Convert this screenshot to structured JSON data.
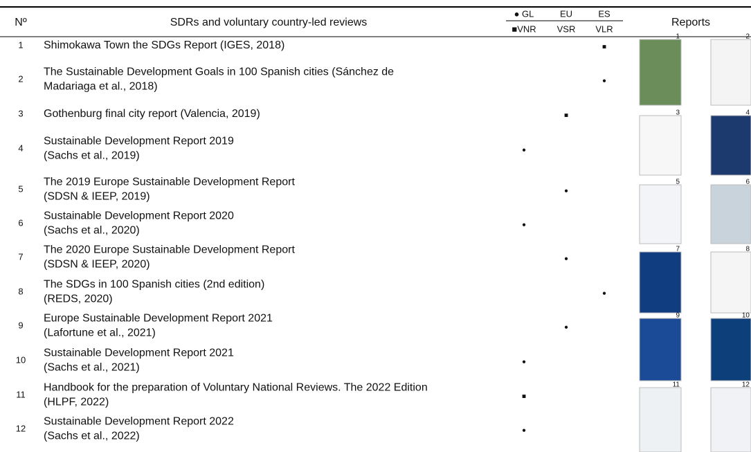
{
  "header": {
    "no": "Nº",
    "title": "SDRs and voluntary country-led reviews",
    "gl": "● GL",
    "eu": "EU",
    "es": "ES",
    "vnr": "■VNR",
    "vsr": "VSR",
    "vlr": "VLR",
    "reports": "Reports"
  },
  "rows": [
    {
      "no": "1",
      "lines": [
        "Shimokawa Town the SDGs Report (IGES, 2018)"
      ],
      "es": "■"
    },
    {
      "no": "2",
      "lines": [
        "The Sustainable Development Goals in 100 Spanish cities (Sánchez de",
        "Madariaga et al., 2018)"
      ],
      "es": "●"
    },
    {
      "no": "3",
      "lines": [
        "Gothenburg final city report (Valencia, 2019)"
      ],
      "eu": "■"
    },
    {
      "no": "4",
      "lines": [
        "Sustainable Development Report 2019",
        "(Sachs et al., 2019)"
      ],
      "gl": "●"
    },
    {
      "no": "5",
      "lines": [
        "The 2019 Europe Sustainable Development Report",
        "(SDSN & IEEP, 2019)"
      ],
      "eu": "●"
    },
    {
      "no": "6",
      "lines": [
        "Sustainable Development Report 2020",
        "(Sachs et al., 2020)"
      ],
      "gl": "●"
    },
    {
      "no": "7",
      "lines": [
        "The 2020 Europe Sustainable Development Report",
        "(SDSN & IEEP, 2020)"
      ],
      "eu": "●"
    },
    {
      "no": "8",
      "lines": [
        "The SDGs in 100 Spanish cities (2nd edition)",
        "(REDS, 2020)"
      ],
      "es": "●"
    },
    {
      "no": "9",
      "lines": [
        "Europe Sustainable Development Report 2021",
        "(Lafortune et al., 2021)"
      ],
      "eu": "●"
    },
    {
      "no": "10",
      "lines": [
        "Sustainable Development Report 2021",
        "(Sachs et al., 2021)"
      ],
      "gl": "●"
    },
    {
      "no": "11",
      "lines": [
        "Handbook for the preparation of Voluntary National Reviews. The 2022 Edition",
        "(HLPF, 2022)"
      ],
      "gl": "■"
    },
    {
      "no": "12",
      "lines": [
        "Sustainable Development Report 2022",
        "(Sachs et al., 2022)"
      ],
      "gl": "●"
    }
  ],
  "reports": [
    "1",
    "2",
    "3",
    "4",
    "5",
    "6",
    "7",
    "8",
    "9",
    "10",
    "11",
    "12"
  ]
}
